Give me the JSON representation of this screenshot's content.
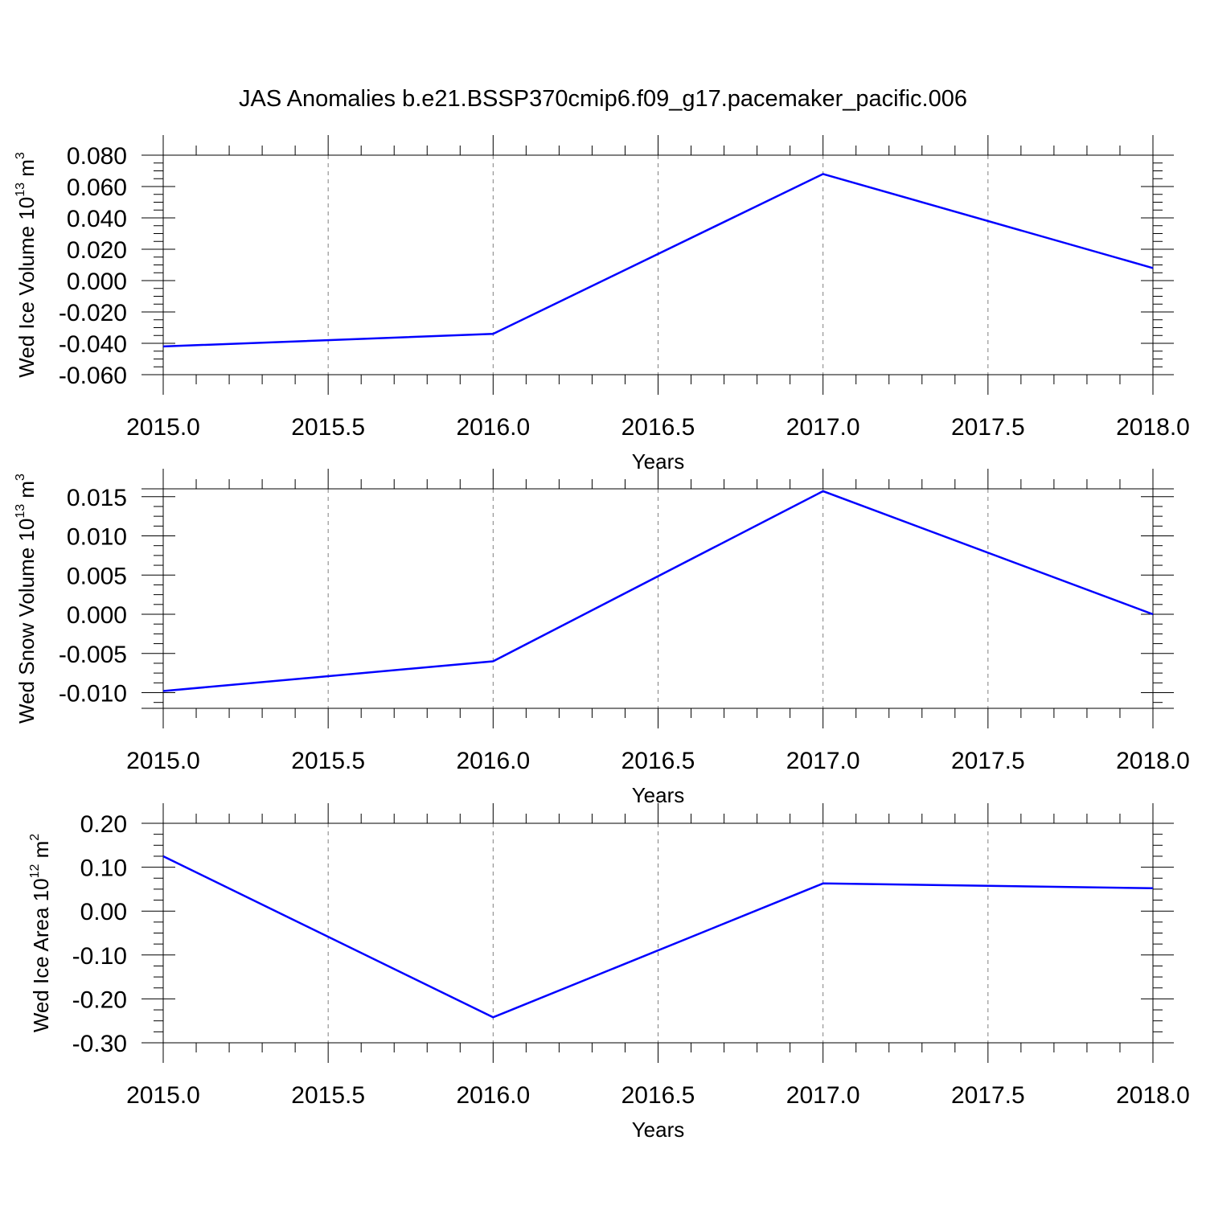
{
  "title": "JAS Anomalies b.e21.BSSP370cmip6.f09_g17.pacemaker_pacific.006",
  "colors": {
    "line": "#0000ff",
    "axis": "#000000",
    "grid": "#808080"
  },
  "chart_data": [
    {
      "type": "line",
      "ylabel_main": "Wed Ice Volume 10",
      "ylabel_exp": "13",
      "ylabel_unit": " m",
      "ylabel_unit_exp": "3",
      "xlabel": "Years",
      "x": [
        2015.0,
        2016.0,
        2017.0,
        2018.0
      ],
      "y": [
        -0.042,
        -0.034,
        0.068,
        0.008
      ],
      "xlim": [
        2015.0,
        2018.0
      ],
      "ylim": [
        -0.06,
        0.08
      ],
      "yticks": [
        -0.06,
        -0.04,
        -0.02,
        0.0,
        0.02,
        0.04,
        0.06,
        0.08
      ],
      "ytick_labels": [
        "-0.060",
        "-0.040",
        "-0.020",
        "0.000",
        "0.020",
        "0.040",
        "0.060",
        "0.080"
      ],
      "xticks": [
        2015.0,
        2015.5,
        2016.0,
        2016.5,
        2017.0,
        2017.5,
        2018.0
      ],
      "xtick_labels": [
        "2015.0",
        "2015.5",
        "2016.0",
        "2016.5",
        "2017.0",
        "2017.5",
        "2018.0"
      ],
      "grid": "vertical dashed at major x ticks"
    },
    {
      "type": "line",
      "ylabel_main": "Wed Snow Volume 10",
      "ylabel_exp": "13",
      "ylabel_unit": " m",
      "ylabel_unit_exp": "3",
      "xlabel": "Years",
      "x": [
        2015.0,
        2016.0,
        2017.0,
        2018.0
      ],
      "y": [
        -0.0098,
        -0.006,
        0.0157,
        0.0
      ],
      "xlim": [
        2015.0,
        2018.0
      ],
      "ylim": [
        -0.012,
        0.016
      ],
      "yticks": [
        -0.01,
        -0.005,
        0.0,
        0.005,
        0.01,
        0.015
      ],
      "ytick_labels": [
        "-0.010",
        "-0.005",
        "0.000",
        "0.005",
        "0.010",
        "0.015"
      ],
      "xticks": [
        2015.0,
        2015.5,
        2016.0,
        2016.5,
        2017.0,
        2017.5,
        2018.0
      ],
      "xtick_labels": [
        "2015.0",
        "2015.5",
        "2016.0",
        "2016.5",
        "2017.0",
        "2017.5",
        "2018.0"
      ],
      "grid": "vertical dashed at major x ticks"
    },
    {
      "type": "line",
      "ylabel_main": "Wed Ice Area 10",
      "ylabel_exp": "12",
      "ylabel_unit": " m",
      "ylabel_unit_exp": "2",
      "xlabel": "Years",
      "x": [
        2015.0,
        2016.0,
        2017.0,
        2018.0
      ],
      "y": [
        0.125,
        -0.242,
        0.063,
        0.052
      ],
      "xlim": [
        2015.0,
        2018.0
      ],
      "ylim": [
        -0.3,
        0.2
      ],
      "yticks": [
        -0.3,
        -0.2,
        -0.1,
        0.0,
        0.1,
        0.2
      ],
      "ytick_labels": [
        "-0.30",
        "-0.20",
        "-0.10",
        "0.00",
        "0.10",
        "0.20"
      ],
      "xticks": [
        2015.0,
        2015.5,
        2016.0,
        2016.5,
        2017.0,
        2017.5,
        2018.0
      ],
      "xtick_labels": [
        "2015.0",
        "2015.5",
        "2016.0",
        "2016.5",
        "2017.0",
        "2017.5",
        "2018.0"
      ],
      "grid": "vertical dashed at major x ticks"
    }
  ]
}
